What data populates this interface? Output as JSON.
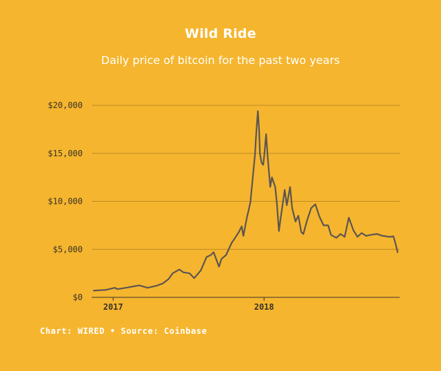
{
  "title": "Wild Ride",
  "subtitle": "Daily price of bitcoin for the past two years",
  "credit": "Chart: WIRED • Source: Coinbase",
  "colors": {
    "background": "#F5B52E",
    "line": "#5b5552",
    "grid": "#bf8a27",
    "text": "#ffffff",
    "axis_text": "#3a3226"
  },
  "chart_data": {
    "type": "line",
    "title": "Wild Ride",
    "subtitle": "Daily price of bitcoin for the past two years",
    "xlabel": "",
    "ylabel": "",
    "ylim": [
      0,
      20000
    ],
    "xlim": [
      "2016-11-10",
      "2018-11-25"
    ],
    "grid": true,
    "y_ticks": [
      0,
      5000,
      10000,
      15000,
      20000
    ],
    "y_tick_labels": [
      "$0",
      "$5,000",
      "$10,000",
      "$15,000",
      "$20,000"
    ],
    "x_ticks": [
      "2017-01-01",
      "2018-01-01"
    ],
    "x_tick_labels": [
      "2017",
      "2018"
    ],
    "series": [
      {
        "x": [
          "2016-11-15",
          "2016-12-15",
          "2017-01-05",
          "2017-01-12",
          "2017-02-01",
          "2017-02-20",
          "2017-03-05",
          "2017-03-25",
          "2017-04-15",
          "2017-05-01",
          "2017-05-15",
          "2017-05-25",
          "2017-06-10",
          "2017-06-20",
          "2017-07-05",
          "2017-07-16",
          "2017-08-01",
          "2017-08-15",
          "2017-08-25",
          "2017-09-01",
          "2017-09-14",
          "2017-09-20",
          "2017-10-01",
          "2017-10-15",
          "2017-10-20",
          "2017-11-01",
          "2017-11-08",
          "2017-11-12",
          "2017-11-20",
          "2017-11-29",
          "2017-12-01",
          "2017-12-07",
          "2017-12-10",
          "2017-12-13",
          "2017-12-17",
          "2017-12-20",
          "2017-12-22",
          "2017-12-26",
          "2017-12-30",
          "2018-01-02",
          "2018-01-06",
          "2018-01-10",
          "2018-01-16",
          "2018-01-20",
          "2018-01-28",
          "2018-02-01",
          "2018-02-06",
          "2018-02-10",
          "2018-02-20",
          "2018-02-25",
          "2018-03-05",
          "2018-03-10",
          "2018-03-18",
          "2018-03-25",
          "2018-04-01",
          "2018-04-06",
          "2018-04-15",
          "2018-04-25",
          "2018-05-05",
          "2018-05-15",
          "2018-05-25",
          "2018-06-05",
          "2018-06-12",
          "2018-06-25",
          "2018-07-05",
          "2018-07-15",
          "2018-07-25",
          "2018-08-05",
          "2018-08-15",
          "2018-08-25",
          "2018-09-05",
          "2018-09-15",
          "2018-10-01",
          "2018-10-15",
          "2018-11-01",
          "2018-11-10",
          "2018-11-15",
          "2018-11-20"
        ],
        "y": [
          700,
          780,
          1000,
          850,
          1000,
          1150,
          1250,
          1000,
          1200,
          1450,
          1900,
          2500,
          2900,
          2600,
          2500,
          2000,
          2800,
          4200,
          4400,
          4700,
          3200,
          4000,
          4400,
          5700,
          6000,
          6800,
          7400,
          6400,
          8200,
          9900,
          10800,
          13500,
          14800,
          17000,
          19400,
          17500,
          15000,
          14000,
          13800,
          15000,
          17000,
          14500,
          11500,
          12500,
          11500,
          9800,
          6900,
          8200,
          11200,
          9600,
          11500,
          9300,
          7900,
          8500,
          6800,
          6600,
          8000,
          9300,
          9700,
          8400,
          7500,
          7500,
          6500,
          6200,
          6600,
          6300,
          8300,
          7000,
          6300,
          6700,
          6400,
          6500,
          6600,
          6400,
          6300,
          6350,
          5600,
          4700
        ]
      }
    ]
  }
}
